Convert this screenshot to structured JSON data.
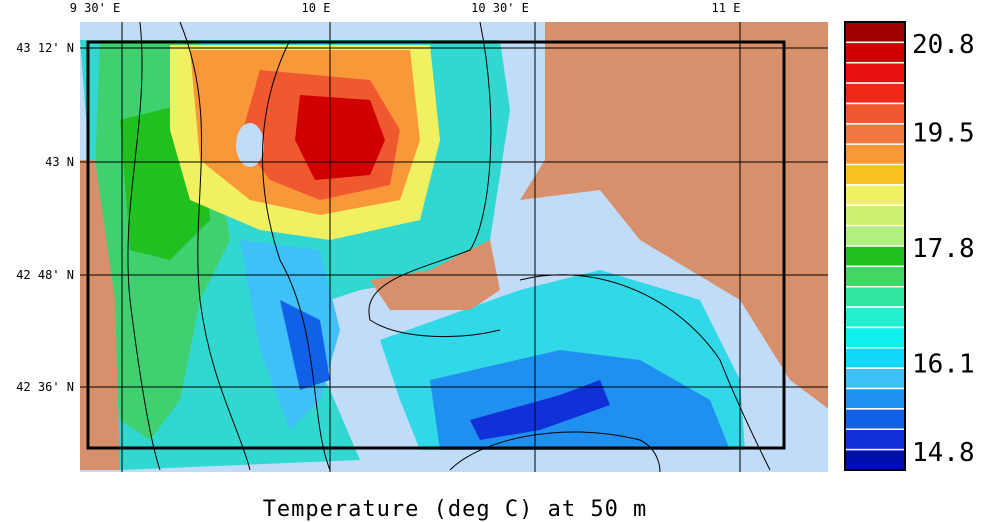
{
  "title": "Temperature (deg C) at 50 m",
  "lon_labels": [
    "9 30' E",
    "10 E",
    "10 30' E",
    "11 E"
  ],
  "lat_labels": [
    "43 12' N",
    "43 N",
    "42 48' N",
    "42 36' N"
  ],
  "colorbar": {
    "labels": [
      20.8,
      19.5,
      17.8,
      16.1,
      14.8
    ],
    "colors": [
      "#a00000",
      "#d00000",
      "#e81010",
      "#f02818",
      "#f05830",
      "#f07840",
      "#f89838",
      "#f8c020",
      "#f0f060",
      "#d0f070",
      "#b0f080",
      "#20c020",
      "#40d860",
      "#30e8a0",
      "#20f0d0",
      "#10f0f0",
      "#10d8f8",
      "#40c0f8",
      "#2090f0",
      "#1060e8",
      "#1030d8",
      "#0010b0"
    ]
  }
}
